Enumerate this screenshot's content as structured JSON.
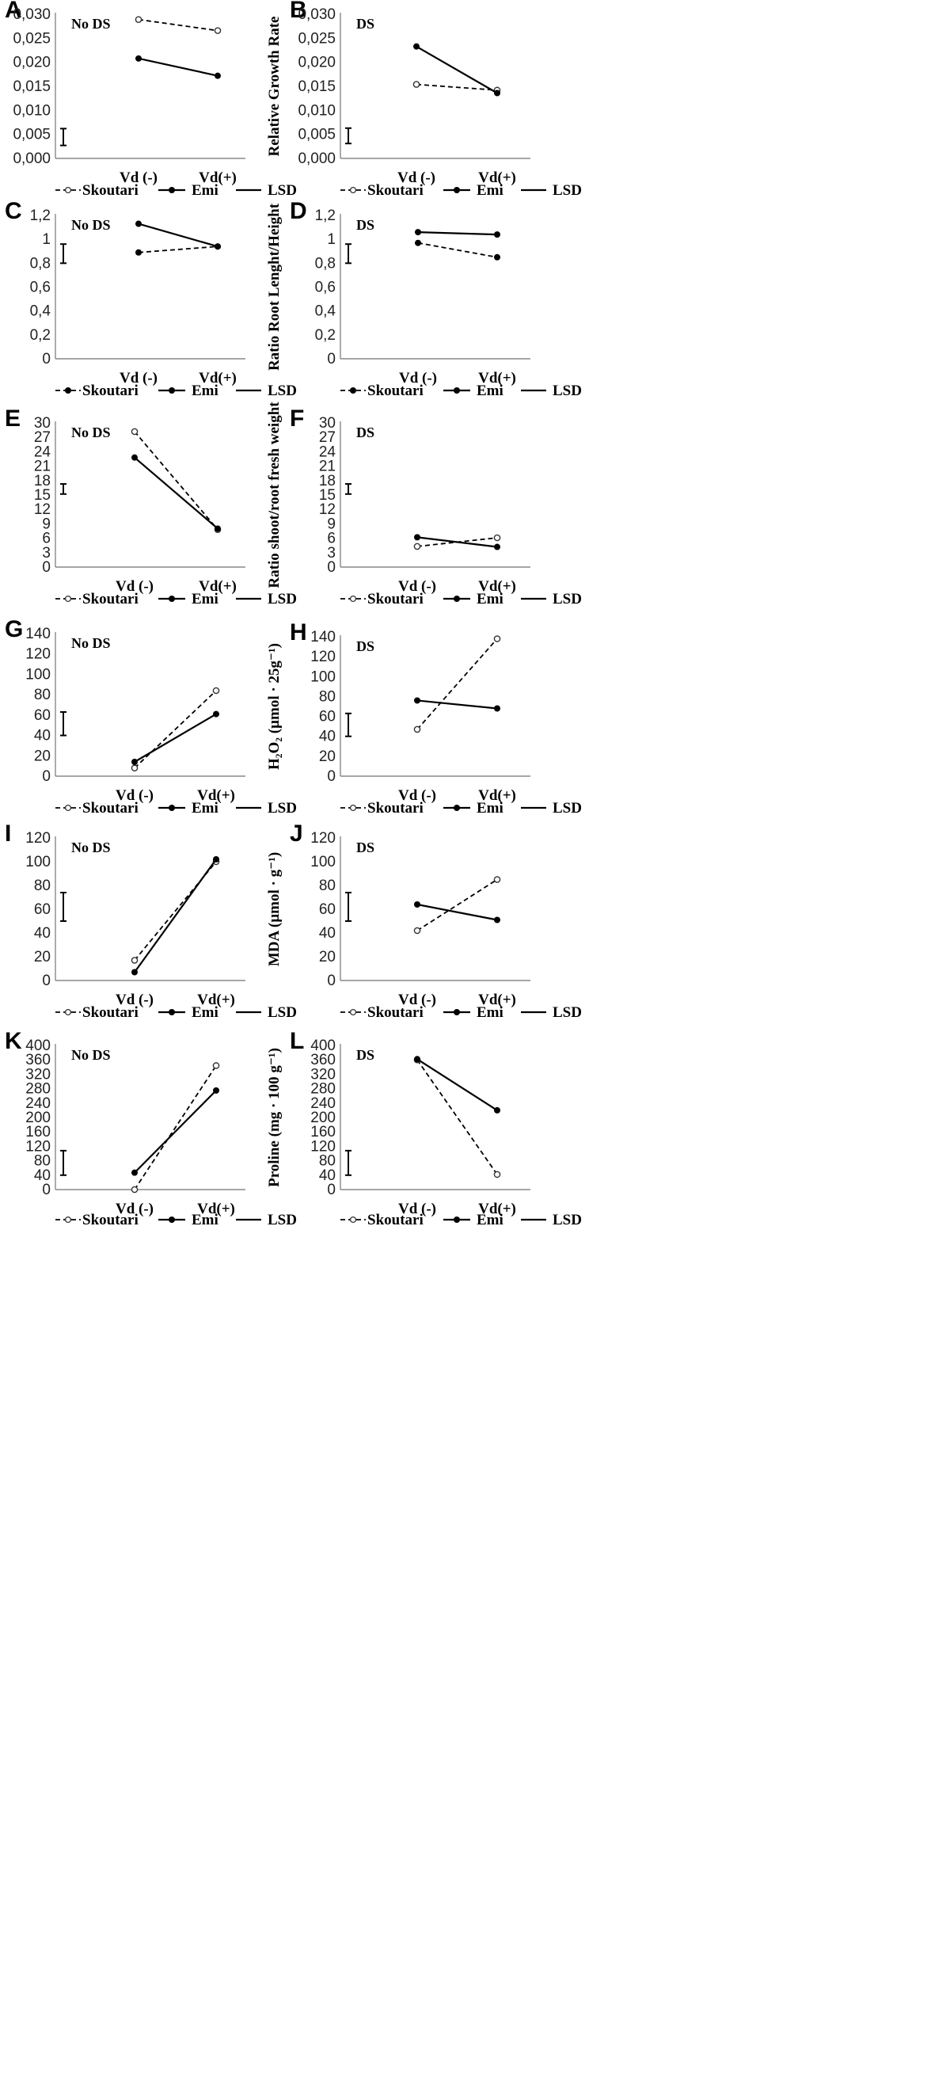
{
  "chart_data": [
    {
      "panel": "A",
      "type": "line",
      "condition": "No DS",
      "ylabel": "Relative Growth Rate",
      "ylim": [
        0,
        0.03
      ],
      "ticks": [
        "0,000",
        "0,005",
        "0,010",
        "0,015",
        "0,020",
        "0,025",
        "0,030"
      ],
      "categories": [
        "Vd (-)",
        "Vd(+)"
      ],
      "series": [
        {
          "name": "Skoutari",
          "style": "dashed",
          "marker": "open",
          "values": [
            0.0289,
            0.0266
          ]
        },
        {
          "name": "Emi",
          "style": "solid",
          "marker": "filled",
          "values": [
            0.0208,
            0.0172
          ]
        }
      ],
      "lsd": [
        0.0027,
        0.0062
      ],
      "legend": [
        "Skoutari",
        "Emi",
        "LSD"
      ]
    },
    {
      "panel": "B",
      "type": "line",
      "condition": "DS",
      "ylabel": "Relative Growth Rate",
      "ylim": [
        0,
        0.03
      ],
      "ticks": [
        "0,000",
        "0,005",
        "0,010",
        "0,015",
        "0,020",
        "0,025",
        "0,030"
      ],
      "categories": [
        "Vd (-)",
        "Vd(+)"
      ],
      "series": [
        {
          "name": "Skoutari",
          "style": "dashed",
          "marker": "open",
          "values": [
            0.0154,
            0.0142
          ]
        },
        {
          "name": "Emi",
          "style": "solid",
          "marker": "filled",
          "values": [
            0.0233,
            0.0136
          ]
        }
      ],
      "lsd": [
        0.0031,
        0.0063
      ],
      "legend": [
        "Skoutari",
        "Emi",
        "LSD"
      ]
    },
    {
      "panel": "C",
      "type": "line",
      "condition": "No DS",
      "ylabel": "Ratio Root Lenght/Height",
      "ylim": [
        0,
        1.2
      ],
      "ticks": [
        "0",
        "0,2",
        "0,4",
        "0,6",
        "0,8",
        "1",
        "1,2"
      ],
      "categories": [
        "Vd (-)",
        "Vd(+)"
      ],
      "series": [
        {
          "name": "Skoutari",
          "style": "dashed",
          "marker": "filled",
          "values": [
            0.89,
            0.94
          ]
        },
        {
          "name": "Emi",
          "style": "solid",
          "marker": "filled",
          "values": [
            1.13,
            0.94
          ]
        }
      ],
      "lsd": [
        0.8,
        0.96
      ],
      "legend": [
        "Skoutari",
        "Emi",
        "LSD"
      ]
    },
    {
      "panel": "D",
      "type": "line",
      "condition": "DS",
      "ylabel": "Ratio Root Lenght/Height",
      "ylim": [
        0,
        1.2
      ],
      "ticks": [
        "0",
        "0,2",
        "0,4",
        "0,6",
        "0,8",
        "1",
        "1,2"
      ],
      "categories": [
        "Vd (-)",
        "Vd(+)"
      ],
      "series": [
        {
          "name": "Skoutari",
          "style": "dashed",
          "marker": "filled",
          "values": [
            0.97,
            0.85
          ]
        },
        {
          "name": "Emi",
          "style": "solid",
          "marker": "filled",
          "values": [
            1.06,
            1.04
          ]
        }
      ],
      "lsd": [
        0.8,
        0.96
      ],
      "legend": [
        "Skoutari",
        "Emi",
        "LSD"
      ]
    },
    {
      "panel": "E",
      "type": "line",
      "condition": "No DS",
      "ylabel": "Ratio shoot/root fresh weight",
      "ylim": [
        0,
        30
      ],
      "ticks": [
        "0",
        "3",
        "6",
        "9",
        "12",
        "15",
        "18",
        "21",
        "24",
        "27",
        "30"
      ],
      "categories": [
        "Vd (-)",
        "Vd(+)"
      ],
      "series": [
        {
          "name": "Skoutari",
          "style": "dashed",
          "marker": "open",
          "values": [
            28.2,
            7.8
          ]
        },
        {
          "name": "Emi",
          "style": "solid",
          "marker": "filled",
          "values": [
            22.8,
            8.0
          ]
        }
      ],
      "lsd": [
        15.2,
        17.3
      ],
      "legend": [
        "Skoutari",
        "Emi",
        "LSD"
      ]
    },
    {
      "panel": "F",
      "type": "line",
      "condition": "DS",
      "ylabel": "Ratio shoot/root fresh weight",
      "ylim": [
        0,
        30
      ],
      "ticks": [
        "0",
        "3",
        "6",
        "9",
        "12",
        "15",
        "18",
        "21",
        "24",
        "27",
        "30"
      ],
      "categories": [
        "Vd (-)",
        "Vd(+)"
      ],
      "series": [
        {
          "name": "Skoutari",
          "style": "dashed",
          "marker": "open",
          "values": [
            4.3,
            6.1
          ]
        },
        {
          "name": "Emi",
          "style": "solid",
          "marker": "filled",
          "values": [
            6.2,
            4.2
          ]
        }
      ],
      "lsd": [
        15.2,
        17.3
      ],
      "legend": [
        "Skoutari",
        "Emi",
        "LSD"
      ]
    },
    {
      "panel": "G",
      "type": "line",
      "condition": "No DS",
      "ylabel": "H₂O₂ (µmol · 25g⁻¹)",
      "ylim": [
        0,
        140
      ],
      "ticks": [
        "0",
        "20",
        "40",
        "60",
        "80",
        "100",
        "120",
        "140"
      ],
      "categories": [
        "Vd (-)",
        "Vd(+)"
      ],
      "series": [
        {
          "name": "Skoutari",
          "style": "dashed",
          "marker": "open",
          "values": [
            8,
            84
          ]
        },
        {
          "name": "Emi",
          "style": "solid",
          "marker": "filled",
          "values": [
            14,
            61
          ]
        }
      ],
      "lsd": [
        40,
        63
      ],
      "legend": [
        "Skoutari",
        "Emi",
        "LSD"
      ]
    },
    {
      "panel": "H",
      "type": "line",
      "condition": "DS",
      "ylabel": "H₂O₂ (µmol · 25g⁻¹)",
      "ylim": [
        0,
        140
      ],
      "ticks": [
        "0",
        "20",
        "40",
        "60",
        "80",
        "100",
        "120",
        "140"
      ],
      "categories": [
        "Vd (-)",
        "Vd(+)"
      ],
      "series": [
        {
          "name": "Skoutari",
          "style": "dashed",
          "marker": "open",
          "values": [
            47,
            138
          ]
        },
        {
          "name": "Emi",
          "style": "solid",
          "marker": "filled",
          "values": [
            76,
            68
          ]
        }
      ],
      "lsd": [
        40,
        63
      ],
      "legend": [
        "Skoutari",
        "Emi",
        "LSD"
      ]
    },
    {
      "panel": "I",
      "type": "line",
      "condition": "No DS",
      "ylabel": "MDA (µmol · g⁻¹)",
      "ylim": [
        0,
        120
      ],
      "ticks": [
        "0",
        "20",
        "40",
        "60",
        "80",
        "100",
        "120"
      ],
      "categories": [
        "Vd (-)",
        "Vd(+)"
      ],
      "series": [
        {
          "name": "Skoutari",
          "style": "dashed",
          "marker": "open",
          "values": [
            17,
            100
          ]
        },
        {
          "name": "Emi",
          "style": "solid",
          "marker": "filled",
          "values": [
            7,
            102
          ]
        }
      ],
      "lsd": [
        50,
        74
      ],
      "legend": [
        "Skoutari",
        "Emi",
        "LSD"
      ]
    },
    {
      "panel": "J",
      "type": "line",
      "condition": "DS",
      "ylabel": "MDA (µmol · g⁻¹)",
      "ylim": [
        0,
        120
      ],
      "ticks": [
        "0",
        "20",
        "40",
        "60",
        "80",
        "100",
        "120"
      ],
      "categories": [
        "Vd (-)",
        "Vd(+)"
      ],
      "series": [
        {
          "name": "Skoutari",
          "style": "dashed",
          "marker": "open",
          "values": [
            42,
            85
          ]
        },
        {
          "name": "Emi",
          "style": "solid",
          "marker": "filled",
          "values": [
            64,
            51
          ]
        }
      ],
      "lsd": [
        50,
        74
      ],
      "legend": [
        "Skoutari",
        "Emi",
        "LSD"
      ]
    },
    {
      "panel": "K",
      "type": "line",
      "condition": "No DS",
      "ylabel": "Proline (mg · 100 g⁻¹)",
      "ylim": [
        0,
        400
      ],
      "ticks": [
        "0",
        "40",
        "80",
        "120",
        "160",
        "200",
        "240",
        "280",
        "320",
        "360",
        "400"
      ],
      "categories": [
        "Vd (-)",
        "Vd(+)"
      ],
      "series": [
        {
          "name": "Skoutari",
          "style": "dashed",
          "marker": "open",
          "values": [
            0,
            344
          ]
        },
        {
          "name": "Emi",
          "style": "solid",
          "marker": "filled",
          "values": [
            47,
            275
          ]
        }
      ],
      "lsd": [
        40,
        108
      ],
      "legend": [
        "Skoutari",
        "Emi",
        "LSD"
      ]
    },
    {
      "panel": "L",
      "type": "line",
      "condition": "DS",
      "ylabel": "Proline (mg · 100 g⁻¹)",
      "ylim": [
        0,
        400
      ],
      "ticks": [
        "0",
        "40",
        "80",
        "120",
        "160",
        "200",
        "240",
        "280",
        "320",
        "360",
        "400"
      ],
      "categories": [
        "Vd (-)",
        "Vd(+)"
      ],
      "series": [
        {
          "name": "Skoutari",
          "style": "dashed",
          "marker": "open",
          "values": [
            360,
            42
          ]
        },
        {
          "name": "Emi",
          "style": "solid",
          "marker": "filled",
          "values": [
            362,
            220
          ]
        }
      ],
      "lsd": [
        40,
        108
      ],
      "legend": [
        "Skoutari",
        "Emi",
        "LSD"
      ]
    }
  ]
}
